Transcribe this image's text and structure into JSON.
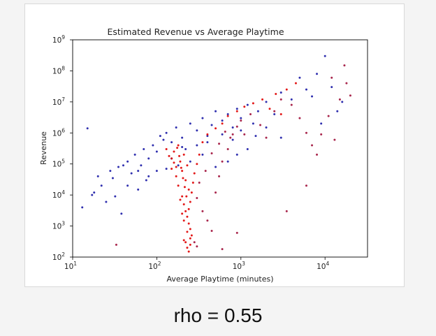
{
  "caption": "rho = 0.55",
  "chart_data": {
    "type": "scatter",
    "title": "Estimated Revenue vs Average Playtime",
    "xlabel": "Average Playtime (minutes)",
    "ylabel": "Revenue",
    "x_scale": "log",
    "y_scale": "log",
    "xlim": [
      10,
      32000
    ],
    "ylim": [
      100,
      1000000000
    ],
    "x_ticks": [
      {
        "value": 10,
        "base": "10",
        "exp": "1"
      },
      {
        "value": 100,
        "base": "10",
        "exp": "2"
      },
      {
        "value": 1000,
        "base": "10",
        "exp": "3"
      },
      {
        "value": 10000,
        "base": "10",
        "exp": "4"
      }
    ],
    "y_ticks": [
      {
        "value": 100,
        "base": "10",
        "exp": "2"
      },
      {
        "value": 1000,
        "base": "10",
        "exp": "3"
      },
      {
        "value": 10000,
        "base": "10",
        "exp": "4"
      },
      {
        "value": 100000,
        "base": "10",
        "exp": "5"
      },
      {
        "value": 1000000,
        "base": "10",
        "exp": "6"
      },
      {
        "value": 10000000,
        "base": "10",
        "exp": "7"
      },
      {
        "value": 100000000,
        "base": "10",
        "exp": "8"
      },
      {
        "value": 1000000000,
        "base": "10",
        "exp": "9"
      }
    ],
    "grid": false,
    "legend": "none",
    "colors": {
      "series_a": "#1a1aa6",
      "series_b": "#e00000",
      "series_c": "#a0103a"
    },
    "series": [
      {
        "color": "#1a1aa6",
        "points": [
          [
            13,
            4000
          ],
          [
            15,
            1400000
          ],
          [
            17,
            10000
          ],
          [
            18,
            12000
          ],
          [
            20,
            40000
          ],
          [
            22,
            20000
          ],
          [
            25,
            6000
          ],
          [
            28,
            60000
          ],
          [
            30,
            35000
          ],
          [
            35,
            80000
          ],
          [
            40,
            90000
          ],
          [
            45,
            120000
          ],
          [
            50,
            50000
          ],
          [
            55,
            200000
          ],
          [
            60,
            60000
          ],
          [
            70,
            300000
          ],
          [
            80,
            150000
          ],
          [
            90,
            400000
          ],
          [
            100,
            250000
          ],
          [
            110,
            800000
          ],
          [
            120,
            600000
          ],
          [
            130,
            1000000
          ],
          [
            150,
            500000
          ],
          [
            170,
            1500000
          ],
          [
            200,
            700000
          ],
          [
            220,
            300000
          ],
          [
            250,
            2000000
          ],
          [
            300,
            1200000
          ],
          [
            350,
            3000000
          ],
          [
            400,
            800000
          ],
          [
            450,
            1800000
          ],
          [
            500,
            5000000
          ],
          [
            600,
            2500000
          ],
          [
            700,
            4000000
          ],
          [
            800,
            1500000
          ],
          [
            900,
            6000000
          ],
          [
            1000,
            3000000
          ],
          [
            1200,
            8000000
          ],
          [
            1400,
            2000000
          ],
          [
            1600,
            5000000
          ],
          [
            2000,
            10000000
          ],
          [
            2500,
            4000000
          ],
          [
            3000,
            20000000
          ],
          [
            4000,
            12000000
          ],
          [
            5000,
            60000000
          ],
          [
            6000,
            25000000
          ],
          [
            7000,
            15000000
          ],
          [
            8000,
            80000000
          ],
          [
            9000,
            2000000
          ],
          [
            10000,
            300000000
          ],
          [
            12000,
            30000000
          ],
          [
            14000,
            5000000
          ],
          [
            16000,
            10000000
          ],
          [
            60,
            15000
          ],
          [
            80,
            40000
          ],
          [
            100,
            60000
          ],
          [
            150,
            150000
          ],
          [
            200,
            350000
          ],
          [
            300,
            400000
          ],
          [
            400,
            500000
          ],
          [
            600,
            900000
          ],
          [
            800,
            600000
          ],
          [
            1000,
            1200000
          ],
          [
            1500,
            800000
          ],
          [
            2000,
            1500000
          ],
          [
            3000,
            700000
          ],
          [
            1200,
            300000
          ],
          [
            900,
            200000
          ],
          [
            700,
            120000
          ],
          [
            500,
            80000
          ],
          [
            350,
            200000
          ],
          [
            250,
            120000
          ],
          [
            180,
            90000
          ],
          [
            130,
            70000
          ],
          [
            75,
            30000
          ],
          [
            65,
            90000
          ],
          [
            45,
            20000
          ],
          [
            38,
            2500
          ],
          [
            32,
            9000
          ]
        ]
      },
      {
        "color": "#e00000",
        "points": [
          [
            150,
            150000
          ],
          [
            160,
            250000
          ],
          [
            170,
            80000
          ],
          [
            180,
            400000
          ],
          [
            190,
            120000
          ],
          [
            200,
            60000
          ],
          [
            210,
            200000
          ],
          [
            220,
            30000
          ],
          [
            230,
            90000
          ],
          [
            240,
            15000
          ],
          [
            200,
            9000
          ],
          [
            210,
            5000
          ],
          [
            220,
            3000
          ],
          [
            230,
            2000
          ],
          [
            240,
            1200
          ],
          [
            250,
            800
          ],
          [
            260,
            500
          ],
          [
            220,
            300
          ],
          [
            230,
            200
          ],
          [
            240,
            150
          ],
          [
            250,
            400
          ],
          [
            210,
            1500
          ],
          [
            200,
            2500
          ],
          [
            190,
            7000
          ],
          [
            180,
            20000
          ],
          [
            170,
            40000
          ],
          [
            160,
            110000
          ],
          [
            150,
            70000
          ],
          [
            140,
            180000
          ],
          [
            130,
            300000
          ],
          [
            250,
            6000
          ],
          [
            260,
            12000
          ],
          [
            270,
            25000
          ],
          [
            280,
            50000
          ],
          [
            300,
            100000
          ],
          [
            320,
            200000
          ],
          [
            350,
            500000
          ],
          [
            400,
            900000
          ],
          [
            500,
            1400000
          ],
          [
            600,
            2000000
          ],
          [
            700,
            3500000
          ],
          [
            900,
            5000000
          ],
          [
            1100,
            7000000
          ],
          [
            1400,
            9000000
          ],
          [
            1800,
            12000000
          ],
          [
            2200,
            6000000
          ],
          [
            2600,
            18000000
          ],
          [
            3000,
            4000000
          ],
          [
            3500,
            25000000
          ],
          [
            4500,
            40000000
          ],
          [
            230,
            650
          ],
          [
            250,
            250
          ],
          [
            210,
            350
          ],
          [
            240,
            3500
          ],
          [
            225,
            9000
          ],
          [
            215,
            18000
          ],
          [
            205,
            35000
          ],
          [
            195,
            75000
          ],
          [
            185,
            180000
          ],
          [
            175,
            330000
          ]
        ]
      },
      {
        "color": "#a0103a",
        "points": [
          [
            300,
            8000
          ],
          [
            350,
            3000
          ],
          [
            400,
            1500
          ],
          [
            450,
            700
          ],
          [
            500,
            12000
          ],
          [
            550,
            40000
          ],
          [
            600,
            120000
          ],
          [
            700,
            300000
          ],
          [
            800,
            900000
          ],
          [
            1000,
            2500000
          ],
          [
            1300,
            4000000
          ],
          [
            1700,
            1800000
          ],
          [
            2000,
            700000
          ],
          [
            2500,
            5000000
          ],
          [
            3000,
            12000000
          ],
          [
            4000,
            8000000
          ],
          [
            5000,
            3000000
          ],
          [
            6000,
            1000000
          ],
          [
            7000,
            400000
          ],
          [
            8000,
            200000
          ],
          [
            9000,
            900000
          ],
          [
            11000,
            3500000
          ],
          [
            13000,
            600000
          ],
          [
            15000,
            12000000
          ],
          [
            18000,
            40000000
          ],
          [
            20000,
            16000000
          ],
          [
            320,
            25000
          ],
          [
            380,
            60000
          ],
          [
            450,
            220000
          ],
          [
            550,
            450000
          ],
          [
            650,
            1100000
          ],
          [
            750,
            700000
          ],
          [
            900,
            1600000
          ],
          [
            1100,
            900000
          ],
          [
            280,
            300
          ],
          [
            300,
            220
          ],
          [
            600,
            180
          ],
          [
            900,
            600
          ],
          [
            3500,
            3000
          ],
          [
            6000,
            20000
          ],
          [
            17000,
            150000000
          ],
          [
            33,
            250
          ],
          [
            12000,
            60000000
          ]
        ]
      }
    ]
  }
}
